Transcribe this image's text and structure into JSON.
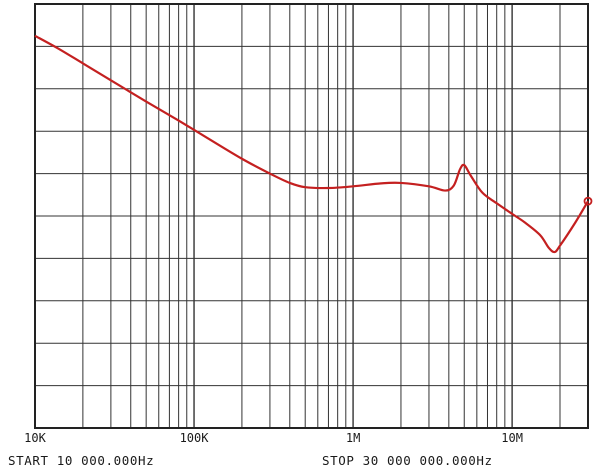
{
  "chart_data": {
    "type": "line",
    "title": "",
    "xlabel": "",
    "ylabel": "",
    "x_scale": "log",
    "xlim": [
      10000,
      30000000
    ],
    "y_divisions": 10,
    "grid": true,
    "legend": "none",
    "x_tick_labels": [
      {
        "value": 10000,
        "label": "10K"
      },
      {
        "value": 100000,
        "label": "100K"
      },
      {
        "value": 1000000,
        "label": "1M"
      },
      {
        "value": 10000000,
        "label": "10M"
      }
    ],
    "series": [
      {
        "color": "#c42020",
        "x": [
          10000,
          14000,
          20000,
          30000,
          50000,
          80000,
          120000,
          200000,
          300000,
          400000,
          500000,
          700000,
          1000000,
          1500000,
          2000000,
          3000000,
          3800000,
          4300000,
          4700000,
          5000000,
          5500000,
          6500000,
          8000000,
          10000000,
          12000000,
          15000000,
          17000000,
          18500000,
          20000000,
          25000000,
          30000000
        ],
        "y": [
          9.25,
          8.95,
          8.6,
          8.2,
          7.7,
          7.25,
          6.85,
          6.35,
          6.0,
          5.78,
          5.68,
          5.66,
          5.7,
          5.77,
          5.78,
          5.7,
          5.6,
          5.72,
          6.1,
          6.2,
          5.95,
          5.55,
          5.3,
          5.05,
          4.85,
          4.55,
          4.25,
          4.15,
          4.3,
          4.85,
          5.35
        ]
      }
    ],
    "footer": {
      "start": "START 10 000.000Hz",
      "stop": "STOP 30 000 000.000Hz"
    }
  }
}
